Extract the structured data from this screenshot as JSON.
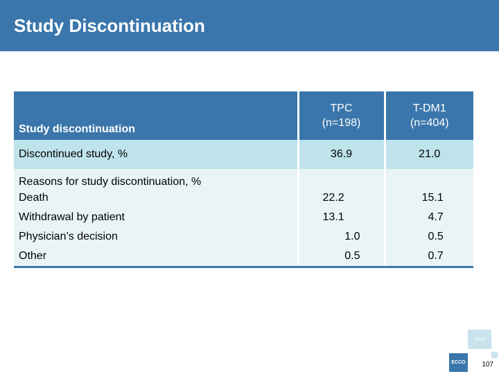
{
  "header": {
    "title": "Study Discontinuation"
  },
  "table": {
    "head": {
      "label": "Study discontinuation",
      "col1": "TPC\n(n=198)",
      "col1_line1": "TPC",
      "col1_line2": "(n=198)",
      "col2_line1": "T-DM1",
      "col2_line2": "(n=404)"
    },
    "discontinued": {
      "label": "Discontinued study, %",
      "tpc": "36.9",
      "tdm1": "21.0"
    },
    "reasons_label": "Reasons for study discontinuation, %",
    "reasons": [
      {
        "label": "Death",
        "tpc": "22.2",
        "tdm1": "15.1"
      },
      {
        "label": "Withdrawal by patient",
        "tpc": "13.1",
        "tdm1": "4.7"
      },
      {
        "label": "Physician’s decision",
        "tpc": "1.0",
        "tdm1": "0.5"
      },
      {
        "label": "Other",
        "tpc": "0.5",
        "tdm1": "0.7"
      }
    ]
  },
  "footer": {
    "badge": "2013",
    "logo": "ECCO",
    "page_number": "107"
  },
  "colors": {
    "header_blue": "#3a76ab",
    "row_highlight": "#bfe3ea",
    "row_light": "#e9f4f6"
  }
}
